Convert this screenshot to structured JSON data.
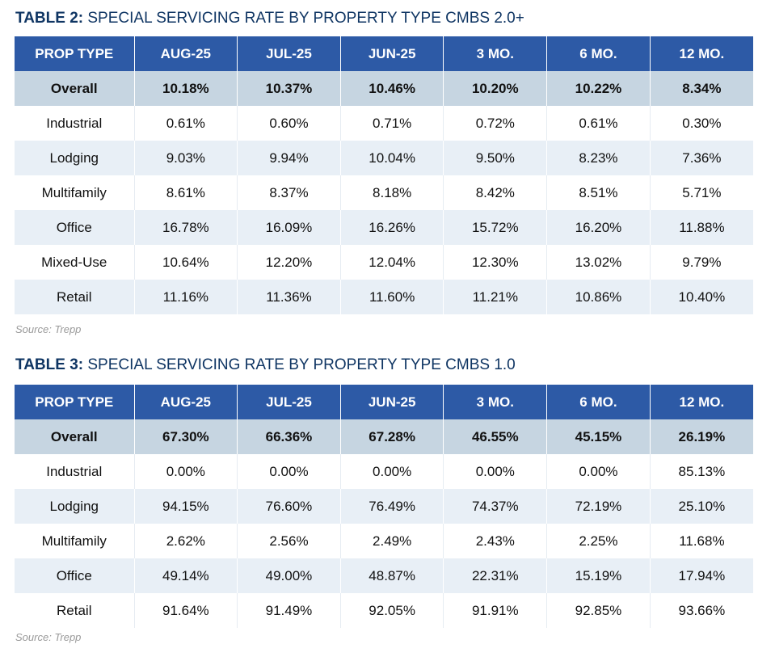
{
  "tables": [
    {
      "label": "TABLE 2:",
      "title": " SPECIAL SERVICING RATE BY PROPERTY TYPE CMBS 2.0+",
      "headers": [
        "PROP TYPE",
        "AUG-25",
        "JUL-25",
        "JUN-25",
        "3 MO.",
        "6 MO.",
        "12 MO."
      ],
      "rows": [
        [
          "Overall",
          "10.18%",
          "10.37%",
          "10.46%",
          "10.20%",
          "10.22%",
          "8.34%"
        ],
        [
          "Industrial",
          "0.61%",
          "0.60%",
          "0.71%",
          "0.72%",
          "0.61%",
          "0.30%"
        ],
        [
          "Lodging",
          "9.03%",
          "9.94%",
          "10.04%",
          "9.50%",
          "8.23%",
          "7.36%"
        ],
        [
          "Multifamily",
          "8.61%",
          "8.37%",
          "8.18%",
          "8.42%",
          "8.51%",
          "5.71%"
        ],
        [
          "Office",
          "16.78%",
          "16.09%",
          "16.26%",
          "15.72%",
          "16.20%",
          "11.88%"
        ],
        [
          "Mixed-Use",
          "10.64%",
          "12.20%",
          "12.04%",
          "12.30%",
          "13.02%",
          "9.79%"
        ],
        [
          "Retail",
          "11.16%",
          "11.36%",
          "11.60%",
          "11.21%",
          "10.86%",
          "10.40%"
        ]
      ],
      "source": "Source: Trepp"
    },
    {
      "label": "TABLE 3:",
      "title": " SPECIAL SERVICING RATE BY PROPERTY TYPE CMBS 1.0",
      "headers": [
        "PROP TYPE",
        "AUG-25",
        "JUL-25",
        "JUN-25",
        "3 MO.",
        "6 MO.",
        "12 MO."
      ],
      "rows": [
        [
          "Overall",
          "67.30%",
          "66.36%",
          "67.28%",
          "46.55%",
          "45.15%",
          "26.19%"
        ],
        [
          "Industrial",
          "0.00%",
          "0.00%",
          "0.00%",
          "0.00%",
          "0.00%",
          "85.13%"
        ],
        [
          "Lodging",
          "94.15%",
          "76.60%",
          "76.49%",
          "74.37%",
          "72.19%",
          "25.10%"
        ],
        [
          "Multifamily",
          "2.62%",
          "2.56%",
          "2.49%",
          "2.43%",
          "2.25%",
          "11.68%"
        ],
        [
          "Office",
          "49.14%",
          "49.00%",
          "48.87%",
          "22.31%",
          "15.19%",
          "17.94%"
        ],
        [
          "Retail",
          "91.64%",
          "91.49%",
          "92.05%",
          "91.91%",
          "92.85%",
          "93.66%"
        ]
      ],
      "source": "Source: Trepp"
    }
  ],
  "colors": {
    "header": "#2d5aa6",
    "overall_row": "#c6d5e1",
    "alt_row": "#e8eff6",
    "title": "#0f3563"
  }
}
